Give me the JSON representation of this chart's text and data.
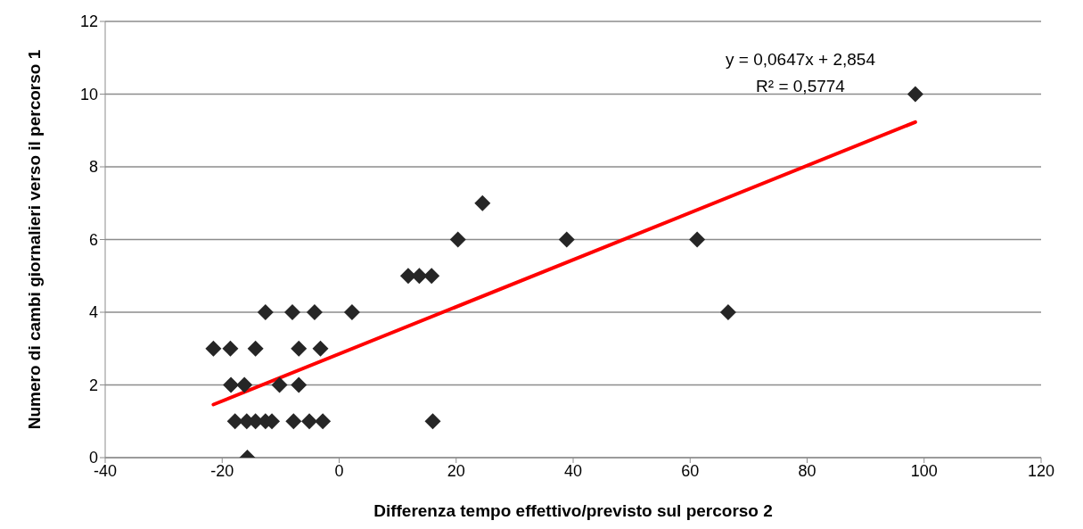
{
  "chart_data": {
    "type": "scatter",
    "xlabel": "Differenza tempo effettivo/previsto sul percorso 2",
    "ylabel": "Numero di cambi giornalieri verso il percorso 1",
    "xlim": [
      -40,
      120
    ],
    "xticks": [
      -40,
      -20,
      0,
      20,
      40,
      60,
      80,
      100,
      120
    ],
    "ylim": [
      0,
      12
    ],
    "yticks": [
      0,
      2,
      4,
      6,
      8,
      10,
      12
    ],
    "grid": "y",
    "marker": "diamond",
    "annotations": [
      "y = 0,0647x + 2,854",
      "R² = 0,5774"
    ],
    "series": [
      {
        "color": "#262626",
        "x": [
          -21.5,
          -18.6,
          -14.3,
          -6.9,
          -3.2,
          -12.6,
          -8,
          -4.2,
          2.2,
          -18.5,
          -16.2,
          -10.2,
          -6.9,
          -17.8,
          -15.8,
          -14.3,
          -12.6,
          -11.5,
          -7.8,
          -5.1,
          -2.8,
          16,
          -15.7,
          11.8,
          13.7,
          15.8,
          20.3,
          38.9,
          61.2,
          24.5,
          66.5,
          98.5
        ],
        "values": [
          3,
          3,
          3,
          3,
          3,
          4,
          4,
          4,
          4,
          2,
          2,
          2,
          2,
          1,
          1,
          1,
          1,
          1,
          1,
          1,
          1,
          1,
          0,
          5,
          5,
          5,
          6,
          6,
          6,
          7,
          4,
          10
        ]
      },
      {
        "type": "line",
        "color": "#ff0000",
        "marker": "none",
        "line_style": "solid",
        "x": [
          -21.5,
          98.5
        ],
        "values": [
          1.46,
          9.23
        ]
      }
    ]
  }
}
